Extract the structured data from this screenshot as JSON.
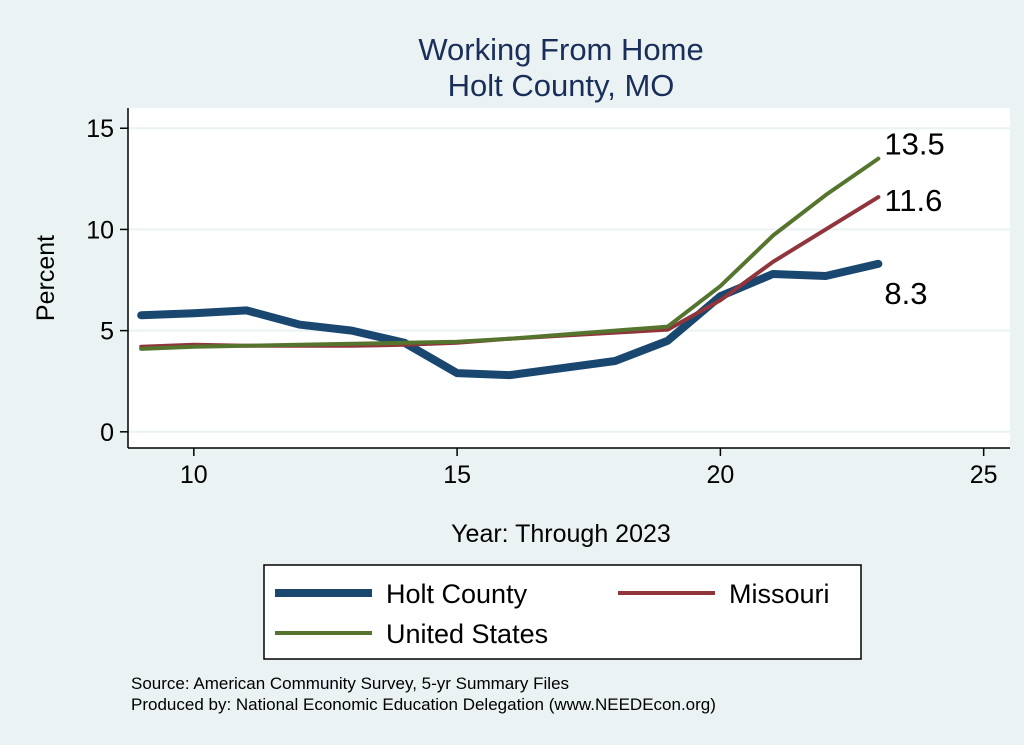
{
  "chart_data": {
    "type": "line",
    "title": "Working From Home",
    "subtitle": "Holt County, MO",
    "xlabel": "Year: Through 2023",
    "ylabel": "Percent",
    "xlim": [
      8.75,
      25.5
    ],
    "ylim": [
      -0.8,
      16
    ],
    "xticks": [
      10,
      15,
      20,
      25
    ],
    "yticks": [
      0,
      5,
      10,
      15
    ],
    "grid": true,
    "x": [
      9,
      10,
      11,
      12,
      13,
      14,
      15,
      16,
      17,
      18,
      19,
      20,
      21,
      22,
      23
    ],
    "series": [
      {
        "name": "Holt County",
        "color": "#1a476f",
        "width": 8,
        "values": [
          5.76,
          5.86,
          6.0,
          5.3,
          5.0,
          4.4,
          2.9,
          2.8,
          3.15,
          3.5,
          4.5,
          6.7,
          7.8,
          7.7,
          8.3
        ],
        "end_label": "8.3"
      },
      {
        "name": "Missouri",
        "color": "#90353b",
        "width": 4,
        "values": [
          4.2,
          4.3,
          4.25,
          4.25,
          4.25,
          4.3,
          4.4,
          4.6,
          4.75,
          4.9,
          5.05,
          6.5,
          8.4,
          10.0,
          11.6
        ],
        "end_label": "11.6"
      },
      {
        "name": "United States",
        "color": "#55752f",
        "width": 4,
        "values": [
          4.1,
          4.2,
          4.25,
          4.3,
          4.35,
          4.4,
          4.45,
          4.6,
          4.8,
          5.0,
          5.2,
          7.2,
          9.7,
          11.7,
          13.5
        ],
        "end_label": "13.5"
      }
    ],
    "legend": {
      "placement": "bottom"
    },
    "notes": [
      "Source: American Community Survey, 5-yr Summary Files",
      "Produced by: National Economic Education Delegation (www.NEEDEcon.org)"
    ]
  }
}
